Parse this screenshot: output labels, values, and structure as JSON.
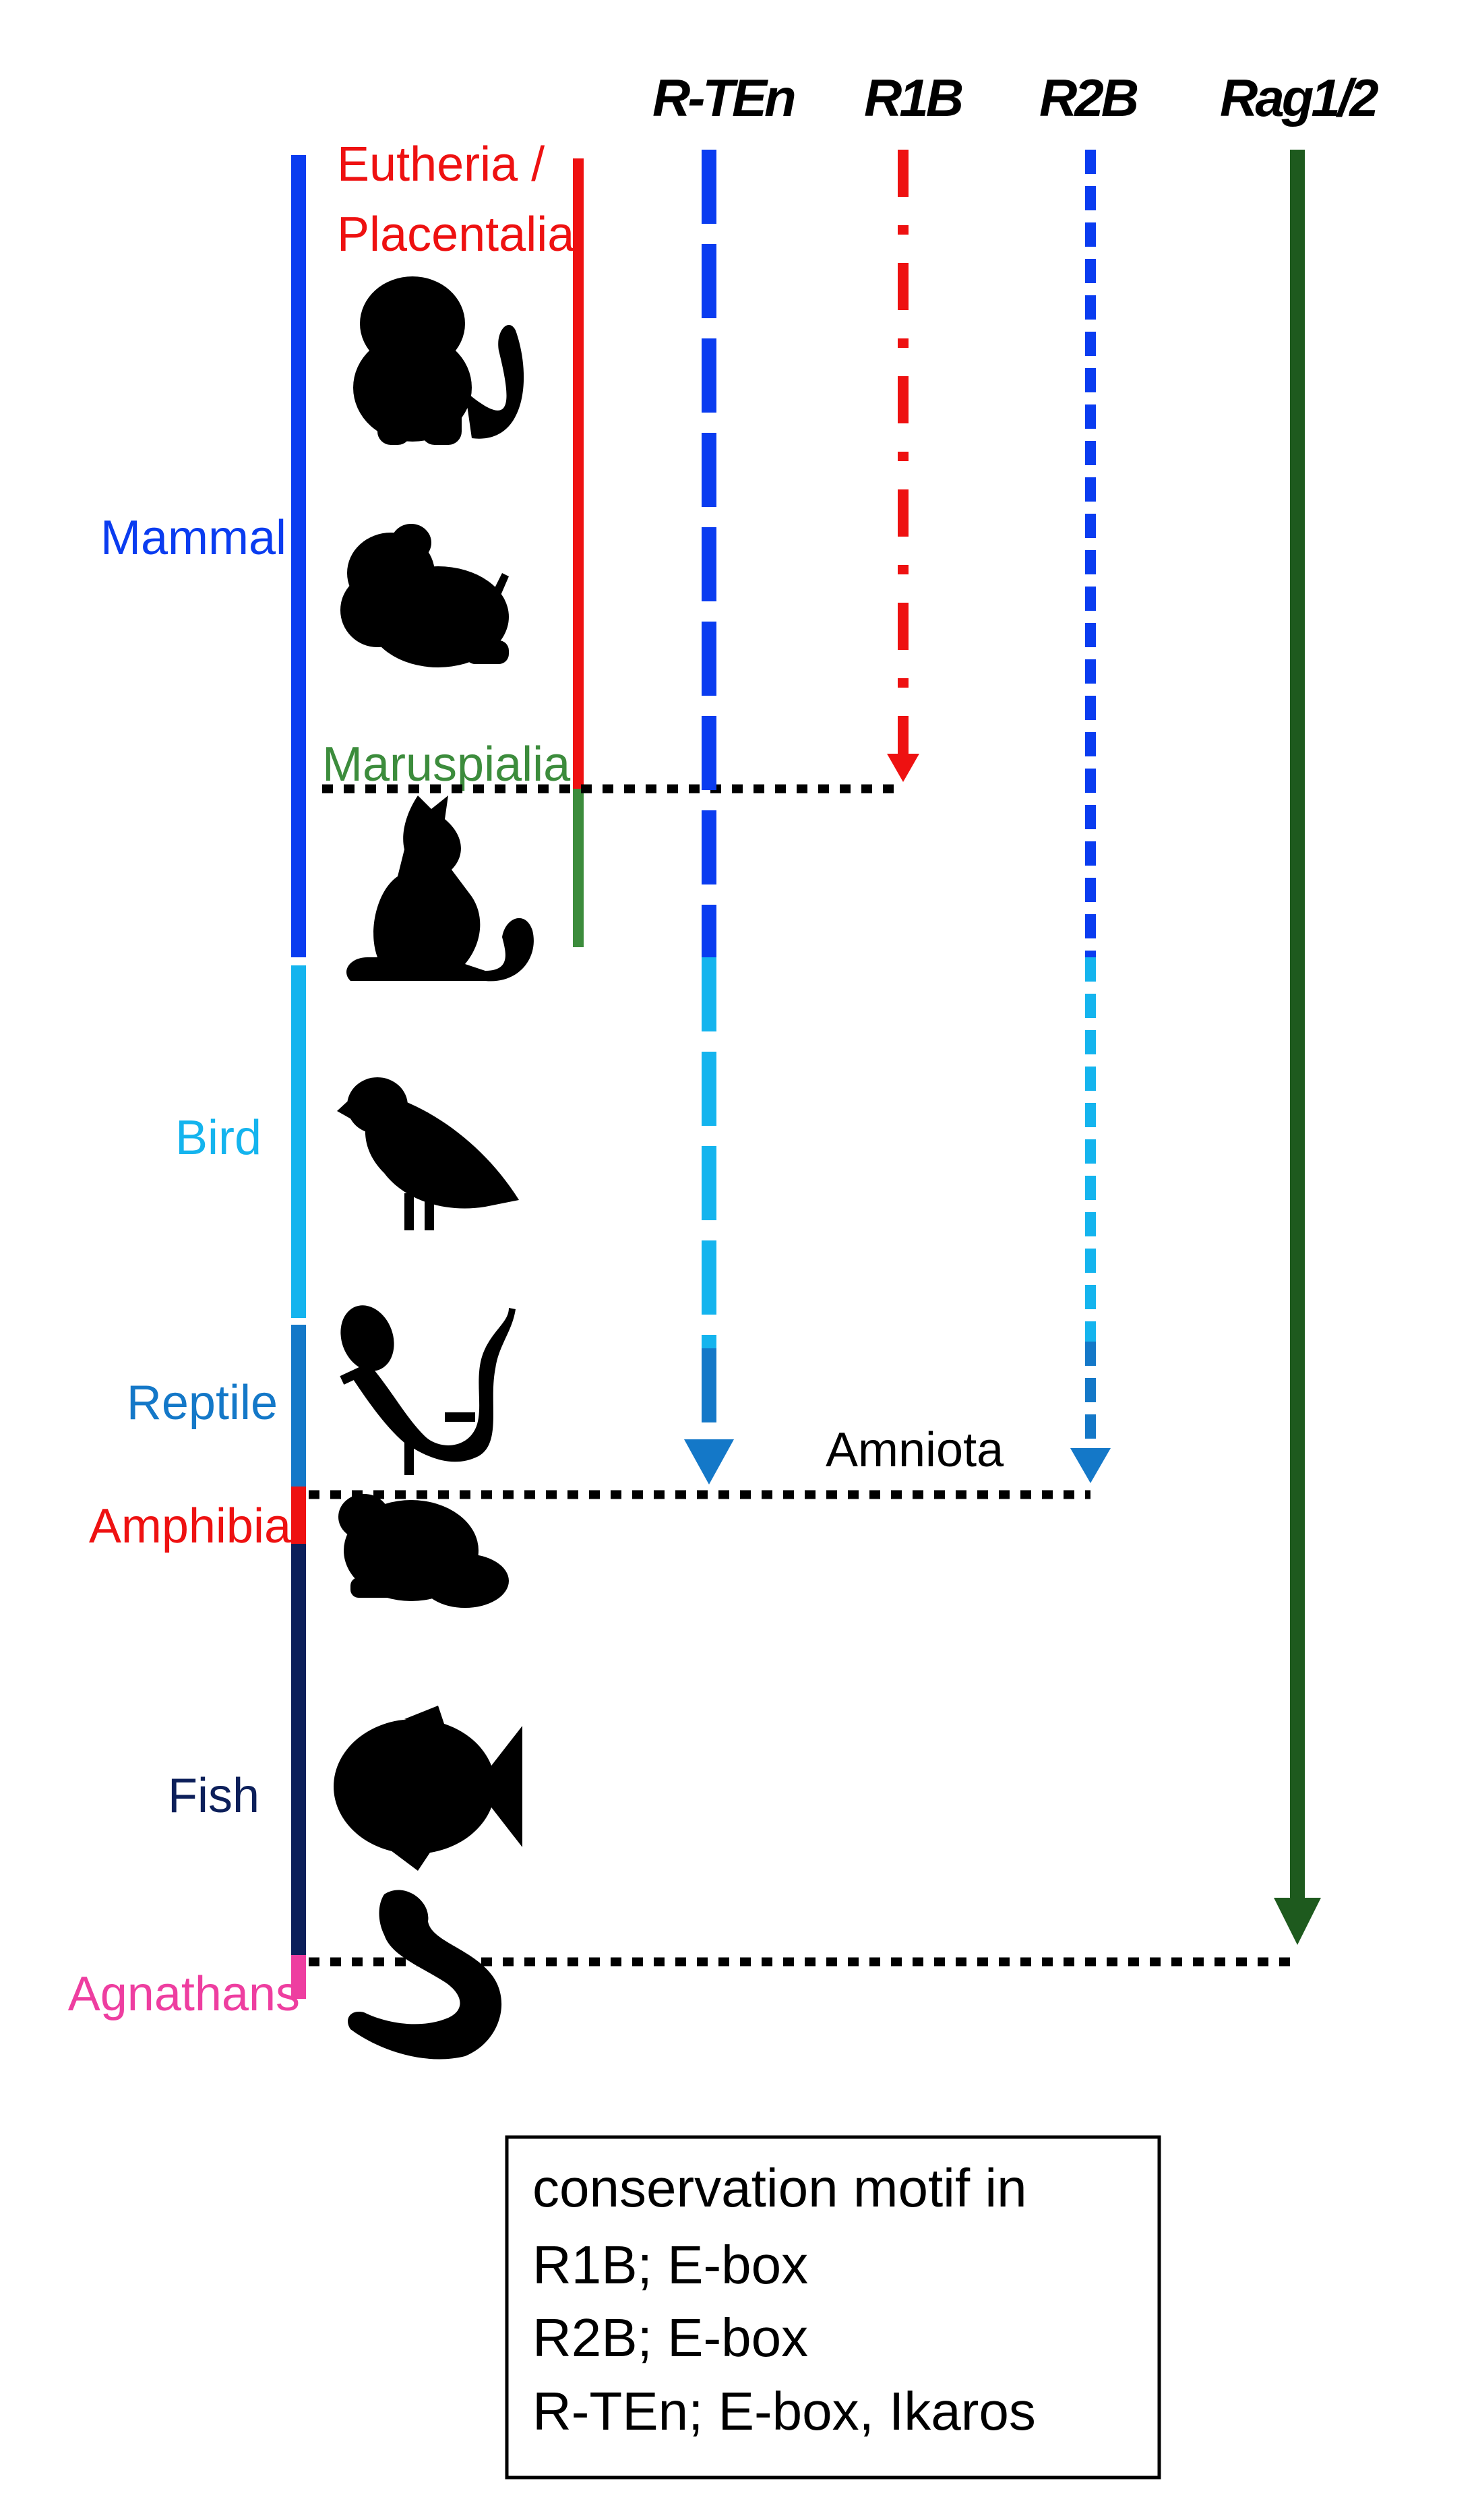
{
  "genes": {
    "rten": "R-TEn",
    "r1b": "R1B",
    "r2b": "R2B",
    "rag": "Rag1/2"
  },
  "groups": {
    "mammal": "Mammal",
    "eutheria_line1": "Eutheria /",
    "eutheria_line2": "Placentalia",
    "marsupialia": "Maruspialia",
    "bird": "Bird",
    "reptile": "Reptile",
    "amphibia": "Amphibia",
    "fish": "Fish",
    "agnathans": "Agnathans",
    "amniota": "Amniota"
  },
  "legend": {
    "line1": "conservation motif in",
    "line2": "R1B; E-box",
    "line3": "R2B; E-box",
    "line4": "R-TEn; E-box, Ikaros"
  },
  "icons": [
    "monkey-icon",
    "rodent-icon",
    "kangaroo-icon",
    "bird-icon",
    "lizard-icon",
    "frog-icon",
    "fish-icon",
    "lamprey-icon"
  ],
  "colors": {
    "mammal": "#0a3cf0",
    "bird": "#14b4ee",
    "reptile": "#1478c8",
    "amphibia": "#ee1111",
    "fish": "#0c1f5a",
    "agnathans": "#ee3ea0",
    "eutheria": "#ee1111",
    "marsupialia": "#3c8c3c",
    "rag": "#1e5a1e"
  }
}
